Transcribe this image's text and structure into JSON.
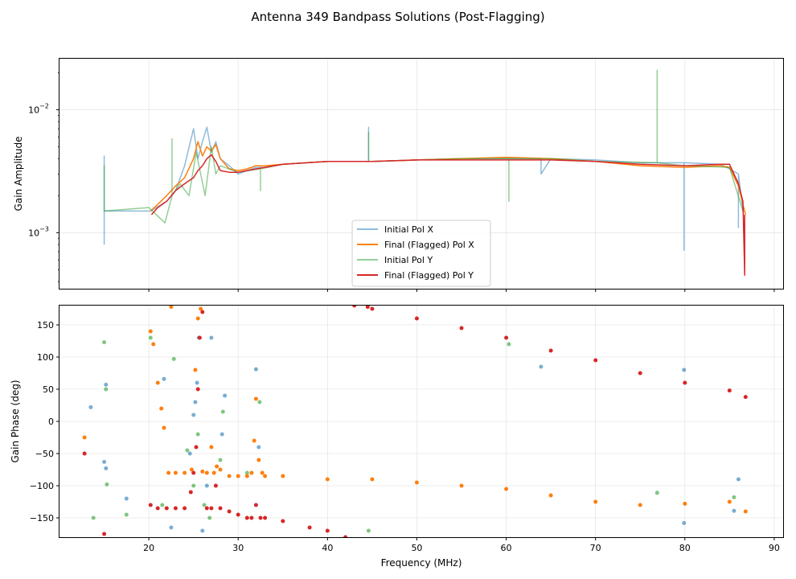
{
  "figure_title": "Antenna 349 Bandpass Solutions (Post-Flagging)",
  "colors": {
    "initial_x": "#1f77b4",
    "final_x": "#ff7f0e",
    "initial_y": "#2ca02c",
    "final_y": "#d62728"
  },
  "chart_data": [
    {
      "type": "line",
      "panel": "amplitude",
      "title": "",
      "xlabel": "",
      "ylabel": "Gain Amplitude",
      "yscale": "log",
      "xlim": [
        10,
        91
      ],
      "ylim": [
        0.00035,
        0.026
      ],
      "yticks": [
        {
          "value": 0.001,
          "base": "10",
          "exp": "−3"
        },
        {
          "value": 0.01,
          "base": "10",
          "exp": "−2"
        }
      ],
      "grid": true,
      "legend": {
        "position": "lower-center",
        "entries": [
          "Initial Pol X",
          "Final (Flagged) Pol X",
          "Initial Pol Y",
          "Final (Flagged) Pol Y"
        ]
      },
      "series": [
        {
          "name": "Initial Pol X",
          "color_key": "initial_x",
          "alpha": 0.5,
          "x": [
            15.0,
            15.0,
            15.0,
            20.2,
            22.0,
            23.0,
            24.0,
            25.0,
            25.5,
            26.0,
            26.5,
            27.0,
            27.5,
            28.0,
            29.0,
            30.0,
            31.0,
            32.0,
            33.0,
            35.0,
            40.0,
            44.6,
            44.6,
            44.6,
            45.0,
            50.0,
            55.0,
            60.0,
            63.9,
            63.9,
            65.0,
            70.0,
            75.0,
            79.9,
            79.9,
            79.9,
            80.0,
            84.0,
            85.0,
            86.0,
            86.0,
            86.0,
            86.5
          ],
          "y": [
            0.0008,
            0.0042,
            0.0015,
            0.0015,
            0.0018,
            0.0022,
            0.0035,
            0.007,
            0.004,
            0.0055,
            0.0072,
            0.0045,
            0.0055,
            0.004,
            0.0035,
            0.003,
            0.0032,
            0.0034,
            0.0034,
            0.0036,
            0.0038,
            0.0038,
            0.0072,
            0.0038,
            0.0038,
            0.0039,
            0.004,
            0.004,
            0.004,
            0.003,
            0.004,
            0.0039,
            0.0037,
            0.0037,
            0.00072,
            0.0037,
            0.0037,
            0.0036,
            0.0033,
            0.003,
            0.0011,
            0.003,
            0.0015
          ]
        },
        {
          "name": "Final (Flagged) Pol X",
          "color_key": "final_x",
          "alpha": 1,
          "x": [
            20.2,
            21.0,
            22.0,
            23.0,
            24.0,
            25.0,
            25.5,
            26.0,
            26.5,
            27.0,
            27.5,
            28.0,
            29.0,
            30.0,
            31.0,
            32.0,
            33.0,
            35.0,
            40.0,
            45.0,
            50.0,
            55.0,
            60.0,
            65.0,
            70.0,
            75.0,
            80.0,
            84.0,
            85.0,
            86.0,
            86.5,
            86.8
          ],
          "y": [
            0.0015,
            0.0017,
            0.002,
            0.0024,
            0.0028,
            0.004,
            0.0055,
            0.0042,
            0.005,
            0.0046,
            0.0052,
            0.004,
            0.0033,
            0.0032,
            0.0033,
            0.0035,
            0.0035,
            0.0036,
            0.0038,
            0.0038,
            0.0039,
            0.004,
            0.0041,
            0.004,
            0.0038,
            0.0035,
            0.0034,
            0.0035,
            0.0034,
            0.0024,
            0.0017,
            0.0014
          ]
        },
        {
          "name": "Initial Pol Y",
          "color_key": "initial_y",
          "alpha": 0.5,
          "x": [
            15.0,
            15.0,
            15.0,
            20.0,
            21.8,
            22.6,
            22.6,
            22.6,
            23.5,
            24.5,
            25.3,
            25.8,
            26.3,
            27.0,
            27.5,
            28.0,
            30.0,
            32.5,
            32.5,
            32.5,
            35.0,
            40.0,
            44.6,
            44.6,
            44.6,
            45.0,
            50.0,
            55.0,
            60.0,
            60.3,
            60.3,
            60.3,
            65.0,
            70.0,
            76.9,
            76.9,
            76.9,
            80.0,
            85.0,
            86.5
          ],
          "y": [
            0.0015,
            0.0035,
            0.0015,
            0.0016,
            0.0012,
            0.002,
            0.0058,
            0.002,
            0.0025,
            0.002,
            0.0045,
            0.003,
            0.002,
            0.005,
            0.003,
            0.0035,
            0.0031,
            0.0033,
            0.0022,
            0.0033,
            0.0036,
            0.0038,
            0.0038,
            0.0065,
            0.0038,
            0.0038,
            0.0039,
            0.004,
            0.004,
            0.004,
            0.0018,
            0.004,
            0.004,
            0.0038,
            0.0037,
            0.021,
            0.0037,
            0.0035,
            0.0034,
            0.0015
          ]
        },
        {
          "name": "Final (Flagged) Pol Y",
          "color_key": "final_y",
          "alpha": 1,
          "x": [
            20.3,
            21.0,
            22.0,
            23.0,
            24.0,
            25.0,
            25.5,
            26.0,
            26.5,
            27.0,
            27.5,
            28.0,
            29.0,
            30.0,
            31.0,
            32.0,
            33.0,
            35.0,
            40.0,
            45.0,
            50.0,
            55.0,
            60.0,
            65.0,
            70.0,
            75.0,
            80.0,
            84.0,
            85.0,
            86.0,
            86.5,
            86.7,
            86.7
          ],
          "y": [
            0.0014,
            0.0016,
            0.0018,
            0.0022,
            0.0025,
            0.0028,
            0.0032,
            0.0035,
            0.004,
            0.0043,
            0.0038,
            0.0032,
            0.0031,
            0.0031,
            0.0032,
            0.0033,
            0.0034,
            0.0036,
            0.0038,
            0.0038,
            0.0039,
            0.0039,
            0.0039,
            0.0039,
            0.0038,
            0.0036,
            0.0035,
            0.0036,
            0.0036,
            0.0025,
            0.0018,
            0.00045,
            0.0014
          ]
        }
      ]
    },
    {
      "type": "scatter",
      "panel": "phase",
      "title": "",
      "xlabel": "Frequency (MHz)",
      "ylabel": "Gain Phase (deg)",
      "xlim": [
        10,
        91
      ],
      "ylim": [
        -180,
        180
      ],
      "xticks": [
        20,
        30,
        40,
        50,
        60,
        70,
        80,
        90
      ],
      "yticks": [
        -150,
        -100,
        -50,
        0,
        50,
        100,
        150
      ],
      "grid": true,
      "series": [
        {
          "name": "Initial Pol X",
          "color_key": "initial_x",
          "x": [
            13.5,
            15.0,
            15.2,
            15.2,
            17.5,
            21.7,
            22.5,
            24.6,
            25.0,
            25.2,
            25.4,
            25.6,
            26.0,
            26.5,
            27.0,
            28.2,
            28.5,
            32.0,
            32.3,
            63.9,
            79.9,
            79.9,
            85.5,
            86.0
          ],
          "y": [
            22,
            -63,
            -73,
            57,
            -120,
            66,
            -165,
            -50,
            10,
            30,
            60,
            130,
            -170,
            -100,
            130,
            -20,
            40,
            81,
            -40,
            85,
            80,
            -158,
            -139,
            -90
          ]
        },
        {
          "name": "Initial Pol Y",
          "color_key": "initial_y",
          "x": [
            13.8,
            15.0,
            15.2,
            15.3,
            17.5,
            20.2,
            21.5,
            22.8,
            24.3,
            25.0,
            25.5,
            26.2,
            26.8,
            28.0,
            28.3,
            31.0,
            32.4,
            44.6,
            60.3,
            76.9,
            85.5
          ],
          "y": [
            -150,
            123,
            50,
            -98,
            -145,
            130,
            -130,
            97,
            -45,
            -100,
            -20,
            -130,
            -150,
            -60,
            15,
            -80,
            30,
            -170,
            120,
            -111,
            -118
          ]
        },
        {
          "name": "Final (Flagged) Pol X",
          "color_key": "final_x",
          "x": [
            12.8,
            20.2,
            20.5,
            21.0,
            21.4,
            21.7,
            22.2,
            22.5,
            23.0,
            24.0,
            24.8,
            25.2,
            25.5,
            25.8,
            26.0,
            26.5,
            27.0,
            27.3,
            27.6,
            28.0,
            29.0,
            30.0,
            31.0,
            31.5,
            31.8,
            32.0,
            32.3,
            32.7,
            33.0,
            35.0,
            40.0,
            45.0,
            50.0,
            55.0,
            60.0,
            65.0,
            70.0,
            75.0,
            80.0,
            85.0,
            86.8
          ],
          "y": [
            -25,
            140,
            120,
            60,
            20,
            -10,
            -80,
            178,
            -80,
            -80,
            -75,
            80,
            160,
            175,
            -78,
            -80,
            -40,
            -80,
            -70,
            -75,
            -85,
            -85,
            -85,
            -80,
            -30,
            35,
            -60,
            -80,
            -85,
            -85,
            -90,
            -90,
            -95,
            -100,
            -105,
            -115,
            -125,
            -130,
            -128,
            -125,
            -140
          ]
        },
        {
          "name": "Final (Flagged) Pol Y",
          "color_key": "final_y",
          "x": [
            12.8,
            15.0,
            20.2,
            21.0,
            22.0,
            23.0,
            24.0,
            24.7,
            25.0,
            25.3,
            25.5,
            25.7,
            26.0,
            26.5,
            27.0,
            27.5,
            28.0,
            29.0,
            30.0,
            31.0,
            31.5,
            32.0,
            32.5,
            33.0,
            35.0,
            38.0,
            40.0,
            42.0,
            43.0,
            44.5,
            45.0,
            50.0,
            55.0,
            60.0,
            65.0,
            70.0,
            75.0,
            80.0,
            85.0,
            86.8
          ],
          "y": [
            -50,
            -175,
            -130,
            -135,
            -135,
            -135,
            -135,
            -110,
            -80,
            -40,
            50,
            130,
            170,
            -135,
            -135,
            -100,
            -135,
            -140,
            -145,
            -150,
            -150,
            -130,
            -150,
            -150,
            -155,
            -165,
            -170,
            -180,
            180,
            178,
            175,
            160,
            145,
            130,
            110,
            95,
            75,
            60,
            48,
            38
          ]
        }
      ]
    }
  ]
}
